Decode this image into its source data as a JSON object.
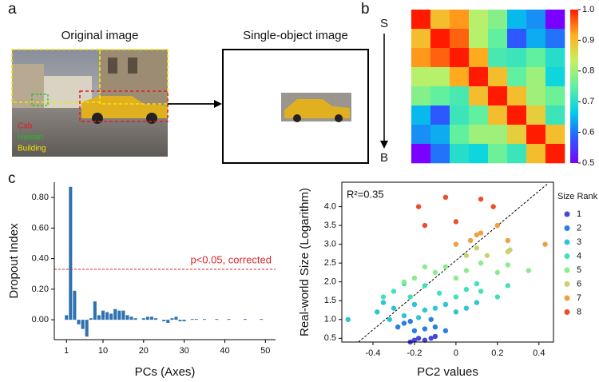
{
  "panel_a": {
    "label": "a",
    "left_title": "Original image",
    "right_title": "Single-object image",
    "legend": [
      "Cab",
      "Human",
      "Building"
    ]
  },
  "panel_c_label": "c",
  "chart_data": [
    {
      "type": "heatmap",
      "label": "b",
      "row_start": "S",
      "row_end": "B",
      "matrix": [
        [
          1.0,
          0.9,
          0.93,
          0.82,
          0.78,
          0.65,
          0.62,
          0.5
        ],
        [
          0.9,
          1.0,
          0.96,
          0.82,
          0.75,
          0.58,
          0.64,
          0.6
        ],
        [
          0.93,
          0.96,
          1.0,
          0.92,
          0.73,
          0.72,
          0.75,
          0.7
        ],
        [
          0.82,
          0.82,
          0.92,
          1.0,
          0.9,
          0.75,
          0.8,
          0.68
        ],
        [
          0.78,
          0.75,
          0.73,
          0.9,
          1.0,
          0.9,
          0.8,
          0.76
        ],
        [
          0.65,
          0.58,
          0.72,
          0.75,
          0.9,
          1.0,
          0.88,
          0.72
        ],
        [
          0.62,
          0.64,
          0.75,
          0.8,
          0.8,
          0.88,
          1.0,
          0.9
        ],
        [
          0.5,
          0.6,
          0.7,
          0.68,
          0.76,
          0.72,
          0.9,
          1.0
        ]
      ],
      "clim": [
        0.5,
        1
      ],
      "cticks": [
        0.5,
        0.6,
        0.7,
        0.8,
        0.9,
        {
          "value": 1,
          "label": "1.0"
        }
      ],
      "colormap": [
        "#7a00ff",
        "#2a5cff",
        "#00d0e8",
        "#60f0a0",
        "#c8f060",
        "#ffb020",
        "#ff1a00"
      ]
    },
    {
      "type": "bar",
      "xlabel": "PCs (Axes)",
      "ylabel": "Dropout Index",
      "color": "#2f72b0",
      "x": [
        1,
        2,
        3,
        4,
        5,
        6,
        7,
        8,
        9,
        10,
        11,
        12,
        13,
        14,
        15,
        16,
        17,
        18,
        19,
        20,
        21,
        22,
        23,
        24,
        25,
        26,
        27,
        28,
        29,
        30,
        31,
        32,
        33,
        34,
        35,
        36,
        37,
        38,
        39,
        40,
        41,
        42,
        43,
        44,
        45,
        46,
        47,
        48,
        49,
        50
      ],
      "values": [
        0.03,
        0.87,
        0.19,
        -0.03,
        -0.06,
        -0.11,
        0.01,
        0.12,
        0.03,
        0.06,
        0.05,
        0.04,
        0.07,
        0.06,
        0.06,
        0.03,
        0.02,
        0.01,
        0.0,
        0.01,
        0.02,
        0.02,
        0.01,
        0.0,
        -0.01,
        -0.02,
        0.01,
        0.02,
        -0.01,
        -0.01,
        0.0,
        0.005,
        0.005,
        0.0,
        0.005,
        0.0,
        0.0,
        0.005,
        0.0,
        0.0,
        0.005,
        0.0,
        0.0,
        0.0,
        0.005,
        0.0,
        0.0,
        0.0,
        0.005,
        0.0
      ],
      "xlim": [
        -2,
        52.5
      ],
      "ylim": [
        -0.13,
        0.9
      ],
      "xticks": [
        1,
        10,
        20,
        30,
        40,
        50
      ],
      "yticks": [
        {
          "value": 0,
          "label": "0.00"
        },
        {
          "value": 0.2,
          "label": "0.20"
        },
        {
          "value": 0.4,
          "label": "0.40"
        },
        {
          "value": 0.6,
          "label": "0.60"
        },
        {
          "value": 0.8,
          "label": "0.80"
        }
      ],
      "threshold": {
        "value": 0.33,
        "label": "p<0.05, corrected",
        "color": "#d62728"
      }
    },
    {
      "type": "scatter",
      "xlabel": "PC2 values",
      "ylabel": "Real-world Size (Logarithm)",
      "annotation": "R²=0.35",
      "legend_title": "Size Rank",
      "xlim": [
        -0.55,
        0.47
      ],
      "ylim": [
        0.4,
        4.65
      ],
      "xticks": [
        -0.4,
        -0.2,
        0,
        0.2,
        0.4
      ],
      "yticks": [
        0.5,
        {
          "value": 1,
          "label": "1.0"
        },
        1.5,
        {
          "value": 2,
          "label": "2.0"
        },
        2.5,
        {
          "value": 3,
          "label": "3.0"
        },
        3.5,
        {
          "value": 4,
          "label": "4.0"
        }
      ],
      "reference_line": {
        "x": [
          -0.47,
          0.44
        ],
        "y": [
          0.4,
          4.6
        ]
      },
      "series": [
        {
          "name": "1",
          "color": "#4646d8",
          "x": [
            -0.2,
            -0.18,
            -0.15,
            -0.12,
            -0.1,
            -0.22
          ],
          "y": [
            0.45,
            0.5,
            0.45,
            0.5,
            0.55,
            0.4
          ]
        },
        {
          "name": "2",
          "color": "#2b7fe0",
          "x": [
            -0.28,
            -0.25,
            -0.2,
            -0.15,
            -0.1,
            -0.05,
            -0.12,
            -0.22
          ],
          "y": [
            0.8,
            0.9,
            0.7,
            0.75,
            0.8,
            0.7,
            1.0,
            0.95
          ]
        },
        {
          "name": "3",
          "color": "#2ec4d6",
          "x": [
            -0.52,
            -0.38,
            -0.32,
            -0.3,
            -0.25,
            -0.2,
            -0.15,
            -0.1,
            -0.05,
            0.0,
            0.05,
            0.1,
            -0.18,
            -0.35
          ],
          "y": [
            1.0,
            1.2,
            1.0,
            1.3,
            1.1,
            1.4,
            1.25,
            1.3,
            1.4,
            1.2,
            1.3,
            1.45,
            1.05,
            1.45
          ]
        },
        {
          "name": "4",
          "color": "#45e0b8",
          "x": [
            -0.35,
            -0.3,
            -0.22,
            -0.15,
            -0.08,
            0.0,
            0.05,
            0.12,
            0.2,
            0.25,
            -0.25,
            0.1
          ],
          "y": [
            1.6,
            1.75,
            1.6,
            1.9,
            1.7,
            1.6,
            1.8,
            1.75,
            1.6,
            1.9,
            1.95,
            1.95
          ]
        },
        {
          "name": "5",
          "color": "#8eea8e",
          "x": [
            -0.2,
            -0.15,
            -0.1,
            -0.05,
            0.0,
            0.05,
            0.12,
            0.2,
            0.35,
            -0.25,
            0.25
          ],
          "y": [
            2.1,
            2.4,
            2.25,
            2.4,
            2.1,
            2.3,
            2.5,
            2.25,
            2.3,
            2.0,
            2.45
          ]
        },
        {
          "name": "6",
          "color": "#c6d272",
          "x": [
            0.05,
            0.15,
            0.25,
            0.26,
            0.1
          ],
          "y": [
            2.7,
            2.7,
            2.8,
            2.85,
            2.9
          ]
        },
        {
          "name": "7",
          "color": "#f0a040",
          "x": [
            0.0,
            0.07,
            0.12,
            0.2,
            0.25,
            0.43,
            0.1
          ],
          "y": [
            3.0,
            3.1,
            3.3,
            3.5,
            3.1,
            3.0,
            3.25
          ]
        },
        {
          "name": "8",
          "color": "#e8502a",
          "x": [
            -0.05,
            -0.18,
            0.0,
            0.12,
            0.18,
            -0.15
          ],
          "y": [
            4.25,
            4.0,
            3.6,
            4.2,
            4.0,
            3.5
          ]
        }
      ]
    }
  ]
}
